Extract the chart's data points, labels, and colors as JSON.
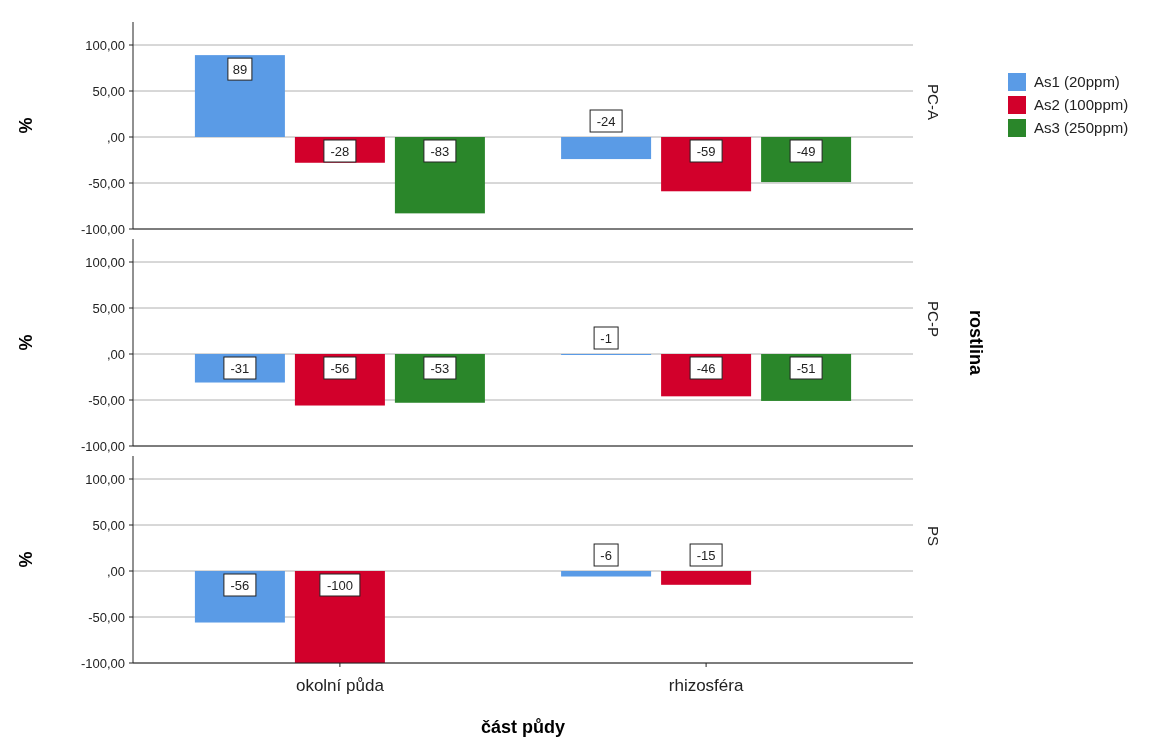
{
  "chart_data": [
    {
      "type": "bar",
      "categories": [
        null,
        null
      ],
      "ylabel": "%",
      "y2label": "PC-A",
      "ylim": [
        -100,
        125
      ],
      "yticks": [
        {
          "value": -100,
          "label": "-100,00"
        },
        {
          "value": -50,
          "label": "-50,00"
        },
        {
          "value": 0,
          "label": ",00"
        },
        {
          "value": 50,
          "label": "50,00"
        },
        {
          "value": 100,
          "label": "100,00"
        }
      ],
      "grid": "y",
      "data_labels": true,
      "tick_labels": "y",
      "legend": "right",
      "series": [
        {
          "name": "As1 (20ppm)",
          "color": "#5a9be6",
          "values": [
            89,
            -24
          ]
        },
        {
          "name": "As2 (100ppm)",
          "color": "#d2002b",
          "values": [
            -28,
            -59
          ]
        },
        {
          "name": "As3 (250ppm)",
          "color": "#2a862a",
          "values": [
            -83,
            -49
          ]
        }
      ]
    },
    {
      "type": "bar",
      "categories": [
        null,
        null
      ],
      "ylabel": "%",
      "y2label": "PC-P",
      "ylim": [
        -100,
        125
      ],
      "yticks": [
        {
          "value": -100,
          "label": "-100,00"
        },
        {
          "value": -50,
          "label": "-50,00"
        },
        {
          "value": 0,
          "label": ",00"
        },
        {
          "value": 50,
          "label": "50,00"
        },
        {
          "value": 100,
          "label": "100,00"
        }
      ],
      "grid": "y",
      "data_labels": true,
      "tick_labels": "y",
      "annotations": [
        "rostlina"
      ],
      "series": [
        {
          "color": "#5a9be6",
          "values": [
            -31,
            -1
          ]
        },
        {
          "color": "#d2002b",
          "values": [
            -56,
            -46
          ]
        },
        {
          "color": "#2a862a",
          "values": [
            -53,
            -51
          ]
        }
      ]
    },
    {
      "type": "bar",
      "categories": [
        "okolní půda",
        "rhizosféra"
      ],
      "ylabel": "%",
      "y2label": "PS",
      "xlabel": "část půdy",
      "ylim": [
        -100,
        125
      ],
      "yticks": [
        {
          "value": -100,
          "label": "-100,00"
        },
        {
          "value": -50,
          "label": "-50,00"
        },
        {
          "value": 0,
          "label": ",00"
        },
        {
          "value": 50,
          "label": "50,00"
        },
        {
          "value": 100,
          "label": "100,00"
        }
      ],
      "grid": "y",
      "data_labels": true,
      "series": [
        {
          "color": "#5a9be6",
          "values": [
            -56,
            -6
          ]
        },
        {
          "color": "#d2002b",
          "values": [
            -100,
            -15
          ]
        }
      ]
    }
  ]
}
